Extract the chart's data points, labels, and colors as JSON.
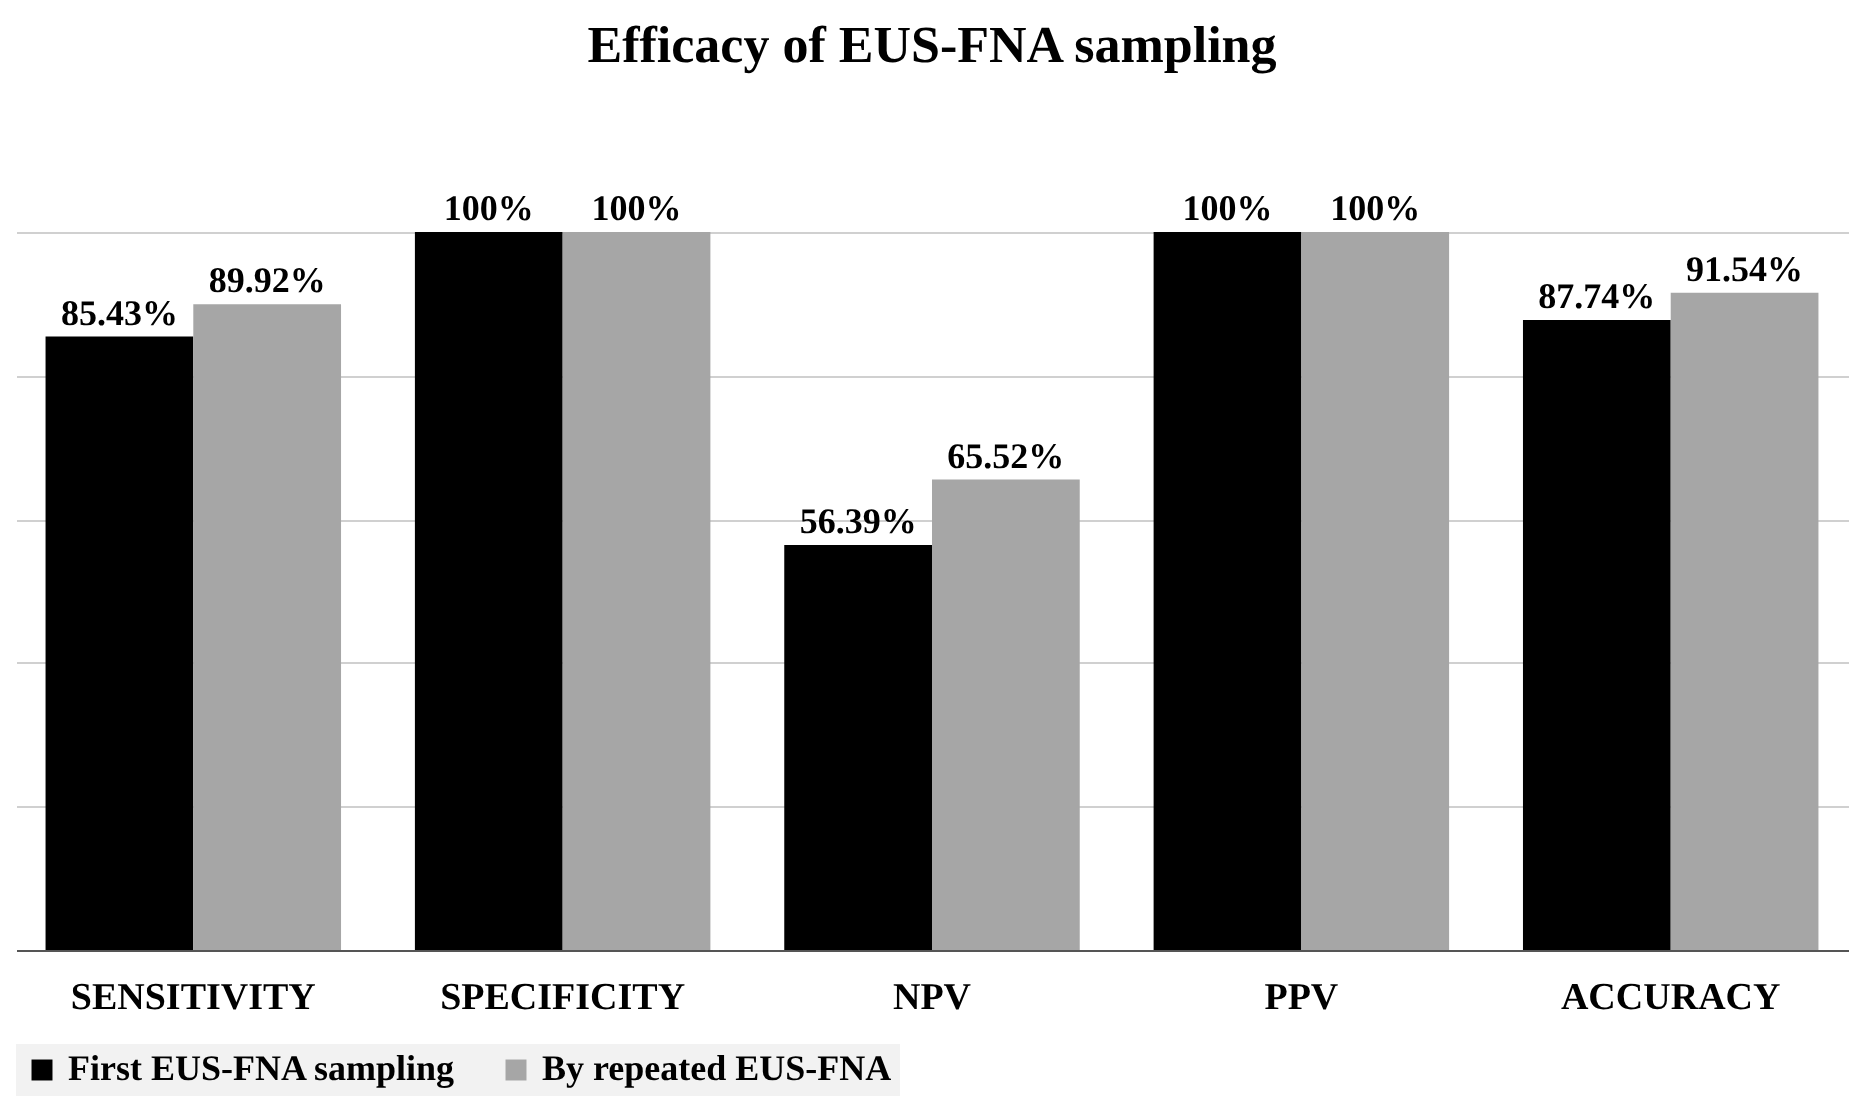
{
  "chart_data": {
    "type": "bar",
    "title": "Efficacy of EUS-FNA sampling",
    "categories": [
      "SENSITIVITY",
      "SPECIFICITY",
      "NPV",
      "PPV",
      "ACCURACY"
    ],
    "series": [
      {
        "name": "First EUS-FNA sampling",
        "color": "#000000",
        "values": [
          85.43,
          100,
          56.39,
          100,
          87.74
        ],
        "value_labels": [
          "85.43%",
          "100%",
          "56.39%",
          "100%",
          "87.74%"
        ]
      },
      {
        "name": "By repeated EUS-FNA",
        "color": "#a6a6a6",
        "values": [
          89.92,
          100,
          65.52,
          100,
          91.54
        ],
        "value_labels": [
          "89.92%",
          "100%",
          "65.52%",
          "100%",
          "91.54%"
        ]
      }
    ],
    "ylim": [
      0,
      100
    ],
    "yticks": [
      {
        "value": 0,
        "label": null
      },
      {
        "value": 20,
        "label": null
      },
      {
        "value": 40,
        "label": null
      },
      {
        "value": 60,
        "label": null
      },
      {
        "value": 80,
        "label": null
      },
      {
        "value": 100,
        "label": null
      }
    ],
    "grid": "y",
    "legend": "bottom",
    "tick_labels": "x"
  }
}
